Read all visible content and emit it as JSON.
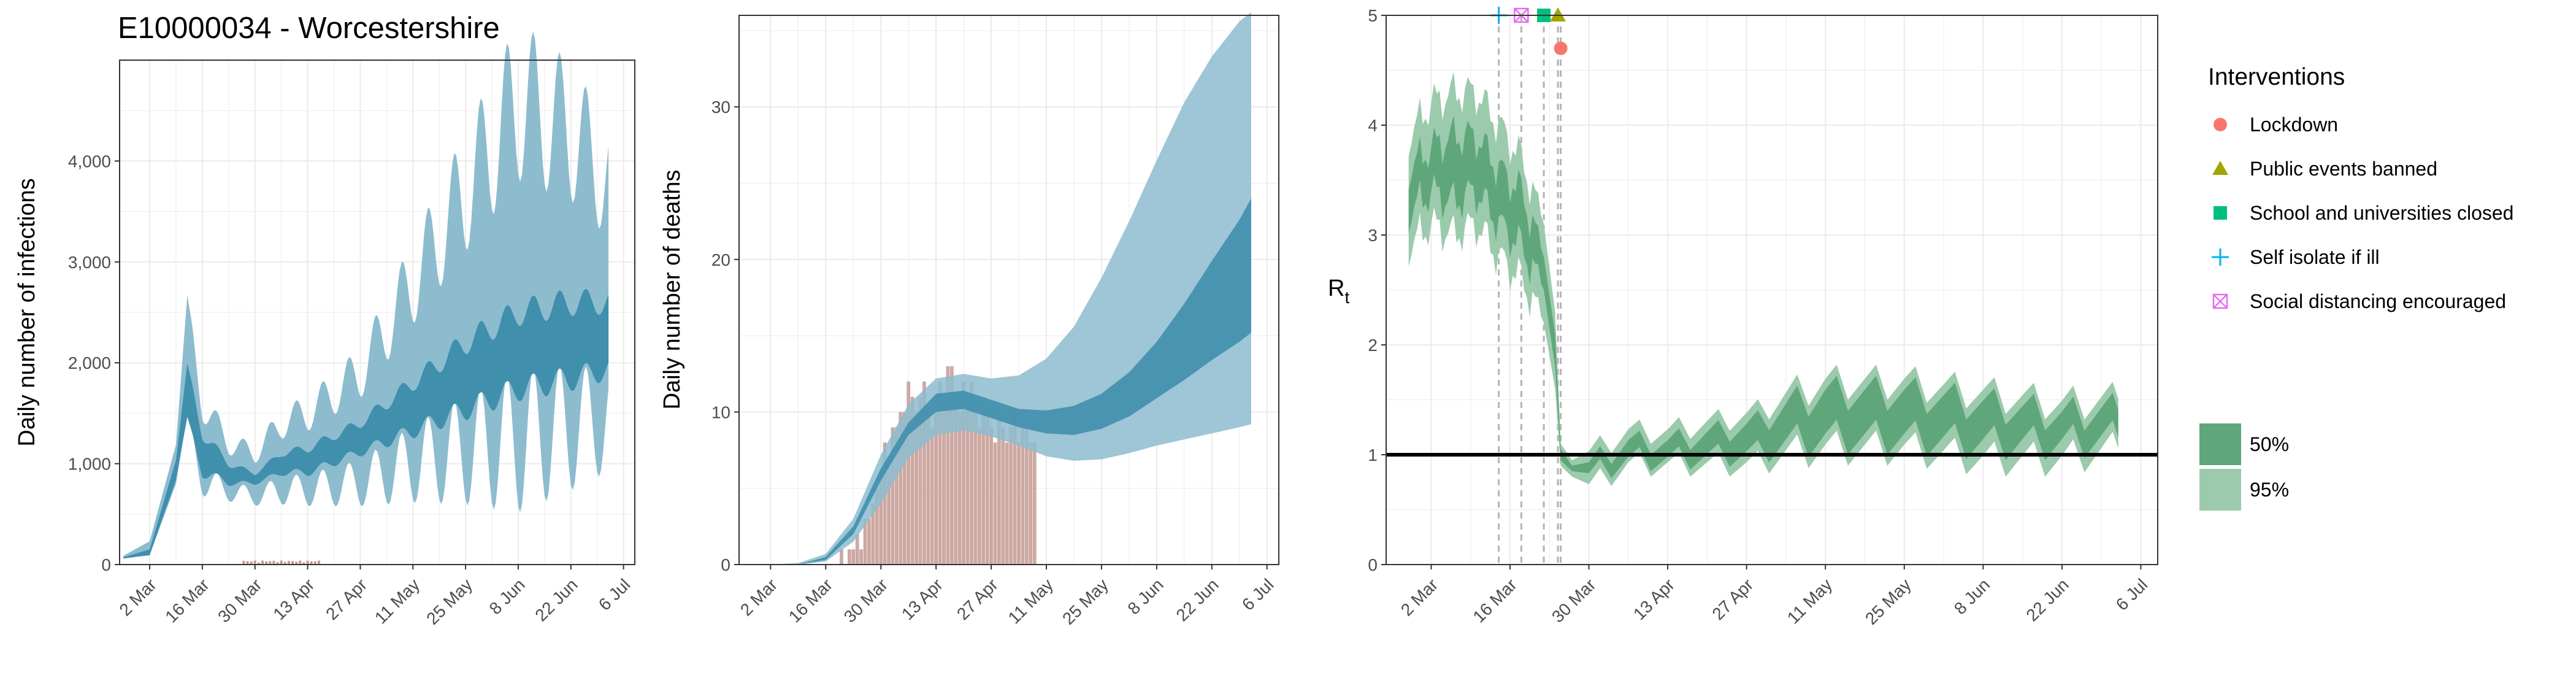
{
  "title": "E10000034 - Worcestershire",
  "colors": {
    "ci95_blue": "#8dbccf",
    "ci50_blue": "#3f8fad",
    "bar_fill": "#c49a92",
    "ci95_green": "#9ccaac",
    "ci50_green": "#5fa77b",
    "lockdown": "#f8766d",
    "public_events": "#a3a500",
    "school": "#00bf7d",
    "self_isolate": "#00b0f6",
    "social_distancing": "#e76bf3",
    "grid": "#ebebeb",
    "reference_line": "#000000"
  },
  "legend": {
    "interventions_title": "Interventions",
    "interventions": [
      {
        "label": "Lockdown",
        "icon": "circle-icon",
        "color_key": "lockdown"
      },
      {
        "label": "Public events banned",
        "icon": "triangle-icon",
        "color_key": "public_events"
      },
      {
        "label": "School and universities closed",
        "icon": "square-icon",
        "color_key": "school"
      },
      {
        "label": "Self isolate if ill",
        "icon": "plus-icon",
        "color_key": "self_isolate"
      },
      {
        "label": "Social distancing encouraged",
        "icon": "boxed-x-icon",
        "color_key": "social_distancing"
      }
    ],
    "bands": [
      {
        "label": "50%",
        "color_key": "ci50_green"
      },
      {
        "label": "95%",
        "color_key": "ci95_green"
      }
    ]
  },
  "chart_data": [
    {
      "type": "area",
      "ylabel": "Daily number of infections",
      "x_axis": "date",
      "xticks": [
        "2 Mar",
        "16 Mar",
        "30 Mar",
        "13 Apr",
        "27 Apr",
        "11 May",
        "25 May",
        "8 Jun",
        "22 Jun",
        "6 Jul"
      ],
      "xtick_days": [
        0,
        14,
        28,
        42,
        56,
        70,
        84,
        98,
        112,
        126
      ],
      "yticks": [
        0,
        1000,
        2000,
        3000,
        4000
      ],
      "ytick_labels": [
        "0",
        "1,000",
        "2,000",
        "3,000",
        "4,000"
      ],
      "xlim_days": [
        -8,
        129
      ],
      "ylim": [
        0,
        5000
      ],
      "grid": true,
      "series": [
        {
          "name": "95%",
          "day_start": -7,
          "day_end": 122,
          "description_points": [
            [
              -7,
              50,
              80
            ],
            [
              0,
              60,
              200
            ],
            [
              7,
              700,
              1100
            ],
            [
              10,
              1200,
              2400
            ],
            [
              14,
              800,
              1600
            ],
            [
              21,
              700,
              1200
            ],
            [
              28,
              650,
              1100
            ],
            [
              35,
              700,
              1400
            ],
            [
              42,
              700,
              1500
            ],
            [
              56,
              750,
              1900
            ],
            [
              70,
              900,
              2800
            ],
            [
              84,
              1000,
              3700
            ],
            [
              98,
              1050,
              4600
            ],
            [
              112,
              1200,
              4300
            ],
            [
              122,
              1300,
              3800
            ]
          ]
        },
        {
          "name": "50%",
          "day_start": -7,
          "day_end": 122,
          "description_points": [
            [
              -7,
              60,
              70
            ],
            [
              0,
              80,
              140
            ],
            [
              7,
              800,
              1000
            ],
            [
              10,
              1350,
              1900
            ],
            [
              14,
              900,
              1300
            ],
            [
              21,
              800,
              1000
            ],
            [
              28,
              800,
              900
            ],
            [
              35,
              900,
              1100
            ],
            [
              42,
              900,
              1150
            ],
            [
              56,
              1100,
              1400
            ],
            [
              70,
              1300,
              1800
            ],
            [
              84,
              1500,
              2200
            ],
            [
              98,
              1700,
              2500
            ],
            [
              112,
              1800,
              2600
            ],
            [
              122,
              1900,
              2600
            ]
          ]
        }
      ],
      "observed_cases": {
        "name": "cases",
        "day_range": [
          25,
          45
        ],
        "max_value": 40
      }
    },
    {
      "type": "area",
      "ylabel": "Daily number of deaths",
      "x_axis": "date",
      "xticks": [
        "2 Mar",
        "16 Mar",
        "30 Mar",
        "13 Apr",
        "27 Apr",
        "11 May",
        "25 May",
        "8 Jun",
        "22 Jun",
        "6 Jul"
      ],
      "xtick_days": [
        0,
        14,
        28,
        42,
        56,
        70,
        84,
        98,
        112,
        126
      ],
      "yticks": [
        0,
        10,
        20,
        30
      ],
      "ytick_labels": [
        "0",
        "10",
        "20",
        "30"
      ],
      "xlim_days": [
        -8,
        129
      ],
      "ylim": [
        0,
        36
      ],
      "grid": true,
      "bars": {
        "name": "deaths",
        "days": [
          14,
          15,
          16,
          17,
          18,
          19,
          20,
          21,
          22,
          23,
          24,
          25,
          26,
          27,
          28,
          29,
          30,
          31,
          32,
          33,
          34,
          35,
          36,
          37,
          38,
          39,
          40,
          41,
          42,
          43,
          44,
          45,
          46,
          47,
          48,
          49,
          50,
          51,
          52,
          53,
          54,
          55,
          56,
          57,
          58,
          59,
          60,
          61,
          62,
          63,
          64,
          65,
          66,
          67
        ],
        "values": [
          0,
          0,
          0,
          0,
          1,
          0,
          1,
          1,
          2,
          1,
          3,
          3,
          4,
          5,
          6,
          8,
          7,
          9,
          9,
          10,
          10,
          12,
          11,
          10,
          11,
          12,
          10,
          9,
          11,
          12,
          10,
          13,
          13,
          11,
          10,
          12,
          11,
          12,
          10,
          9,
          11,
          10,
          9,
          8,
          10,
          9,
          8,
          9,
          10,
          8,
          9,
          9,
          8,
          8
        ]
      },
      "series": [
        {
          "name": "95%",
          "days": [
            -7,
            0,
            7,
            14,
            21,
            28,
            35,
            42,
            49,
            56,
            63,
            70,
            77,
            84,
            91,
            98,
            105,
            112,
            119,
            122
          ],
          "lower": [
            0,
            0,
            0,
            0.2,
            1.5,
            4,
            7,
            8.5,
            8.8,
            8.4,
            7.8,
            7.1,
            6.8,
            6.9,
            7.3,
            7.8,
            8.2,
            8.6,
            9.0,
            9.2
          ],
          "upper": [
            0,
            0,
            0.1,
            0.7,
            3,
            7.2,
            10.5,
            12.2,
            12.5,
            12.2,
            12.4,
            13.5,
            15.6,
            18.8,
            22.5,
            26.5,
            30.3,
            33.3,
            35.6,
            36.2
          ]
        },
        {
          "name": "50%",
          "days": [
            -7,
            0,
            7,
            14,
            21,
            28,
            35,
            42,
            49,
            56,
            63,
            70,
            77,
            84,
            91,
            98,
            105,
            112,
            119,
            122
          ],
          "lower": [
            0,
            0,
            0,
            0.3,
            2,
            5.5,
            8.5,
            10,
            10.2,
            9.6,
            9.0,
            8.6,
            8.5,
            8.9,
            9.7,
            10.9,
            12.1,
            13.4,
            14.6,
            15.2
          ],
          "upper": [
            0,
            0,
            0,
            0.5,
            2.5,
            6.3,
            9.3,
            11.2,
            11.4,
            10.8,
            10.2,
            10.1,
            10.4,
            11.2,
            12.6,
            14.6,
            17.1,
            19.9,
            22.6,
            24.0
          ]
        }
      ]
    },
    {
      "type": "area",
      "ylabel": "R",
      "ylabel_subscript": "t",
      "x_axis": "date",
      "xticks": [
        "2 Mar",
        "16 Mar",
        "30 Mar",
        "13 Apr",
        "27 Apr",
        "11 May",
        "25 May",
        "8 Jun",
        "22 Jun",
        "6 Jul"
      ],
      "xtick_days": [
        0,
        14,
        28,
        42,
        56,
        70,
        84,
        98,
        112,
        126
      ],
      "yticks": [
        0,
        1,
        2,
        3,
        4,
        5
      ],
      "ytick_labels": [
        "0",
        "1",
        "2",
        "3",
        "4",
        "5"
      ],
      "xlim_days": [
        -8,
        129
      ],
      "ylim": [
        0,
        5
      ],
      "grid": true,
      "reference_line": 1,
      "interventions": [
        {
          "name": "Self isolate if ill",
          "day": 12,
          "marker": "plus-icon",
          "color_key": "self_isolate",
          "y": 5
        },
        {
          "name": "Social distancing encouraged",
          "day": 16,
          "marker": "boxed-x-icon",
          "color_key": "social_distancing",
          "y": 5
        },
        {
          "name": "School and universities closed",
          "day": 20,
          "marker": "square-icon",
          "color_key": "school",
          "y": 5
        },
        {
          "name": "Public events banned",
          "day": 22.5,
          "marker": "triangle-icon",
          "color_key": "public_events",
          "y": 5
        },
        {
          "name": "Lockdown",
          "day": 23,
          "marker": "circle-icon",
          "color_key": "lockdown",
          "y": 4.7
        }
      ],
      "series": [
        {
          "name": "95%",
          "days": [
            -4,
            0,
            4,
            8,
            12,
            16,
            20,
            22,
            23,
            25,
            28,
            35,
            42,
            56,
            70,
            84,
            98,
            112,
            122
          ],
          "lower": [
            2.9,
            3.1,
            3.0,
            3.1,
            2.8,
            2.6,
            2.2,
            1.6,
            0.9,
            0.8,
            0.6,
            0.8,
            0.8,
            0.8,
            0.9,
            0.9,
            0.8,
            0.8,
            0.9
          ],
          "upper": [
            3.9,
            4.2,
            4.3,
            4.3,
            4.0,
            3.7,
            3.1,
            2.3,
            1.1,
            0.95,
            0.9,
            1.1,
            1.1,
            1.25,
            1.5,
            1.5,
            1.4,
            1.3,
            1.35
          ]
        },
        {
          "name": "50%",
          "days": [
            -4,
            0,
            4,
            8,
            12,
            16,
            20,
            22,
            23,
            25,
            28,
            35,
            42,
            56,
            70,
            84,
            98,
            112,
            122
          ],
          "lower": [
            3.2,
            3.4,
            3.3,
            3.4,
            3.1,
            2.9,
            2.5,
            1.8,
            0.95,
            0.85,
            0.7,
            0.85,
            0.85,
            0.9,
            1.0,
            1.0,
            0.95,
            0.95,
            1.0
          ],
          "upper": [
            3.6,
            3.8,
            3.9,
            3.9,
            3.6,
            3.4,
            2.8,
            2.1,
            1.05,
            0.9,
            0.8,
            1.0,
            1.0,
            1.15,
            1.4,
            1.4,
            1.3,
            1.2,
            1.25
          ]
        }
      ]
    }
  ]
}
